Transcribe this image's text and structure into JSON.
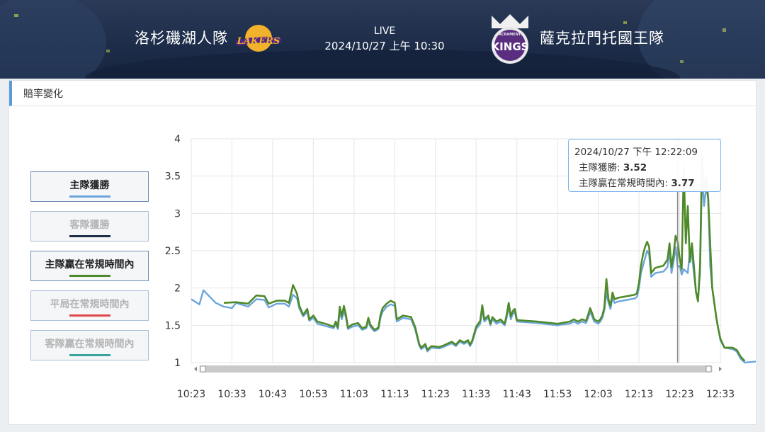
{
  "header": {
    "home_team": "洛杉磯湖人隊",
    "away_team": "薩克拉門托國王隊",
    "status": "LIVE",
    "datetime": "2024/10/27 上午 10:30",
    "home_logo_text": "LAKERS",
    "away_logo_text": "KINGS",
    "away_logo_small": "SACRAMENTO"
  },
  "panel": {
    "title": "賠率變化"
  },
  "legend": [
    {
      "label": "主隊獲勝",
      "color": "#6ba5dc",
      "active": true
    },
    {
      "label": "客隊獲勝",
      "color": "#1f2f4a",
      "active": false
    },
    {
      "label": "主隊贏在常規時間內",
      "color": "#4f8a2a",
      "active": true
    },
    {
      "label": "平局在常規時間內",
      "color": "#e0474c",
      "active": false
    },
    {
      "label": "客隊贏在常規時間內",
      "color": "#39a49a",
      "active": false
    }
  ],
  "tooltip": {
    "time": "2024/10/27 下午 12:22:09",
    "row1_label": "主隊獲勝: ",
    "row1_value": "3.52",
    "row2_label": "主隊贏在常規時間內: ",
    "row2_value": "3.77"
  },
  "chart_data": {
    "type": "line",
    "x_ticks": [
      "10:23",
      "10:33",
      "10:43",
      "10:53",
      "11:03",
      "11:13",
      "11:23",
      "11:33",
      "11:43",
      "11:53",
      "12:03",
      "12:13",
      "12:23",
      "12:33"
    ],
    "y_ticks": [
      "1",
      "1.5",
      "2",
      "2.5",
      "3",
      "3.5",
      "4"
    ],
    "ylim": [
      1,
      4
    ],
    "xlim_minutes": [
      0,
      130
    ],
    "crosshair_x": 119.5,
    "grid": true,
    "series": [
      {
        "name": "主隊獲勝",
        "color": "#6ba5dc",
        "points": [
          [
            0,
            1.85
          ],
          [
            2,
            1.78
          ],
          [
            3,
            1.97
          ],
          [
            6,
            1.8
          ],
          [
            8,
            1.75
          ],
          [
            10,
            1.73
          ],
          [
            11,
            1.8
          ],
          [
            14,
            1.75
          ],
          [
            16,
            1.85
          ],
          [
            18,
            1.84
          ],
          [
            19,
            1.74
          ],
          [
            21,
            1.79
          ],
          [
            23,
            1.79
          ],
          [
            24,
            1.75
          ],
          [
            25,
            1.91
          ],
          [
            26,
            1.86
          ],
          [
            26.5,
            1.73
          ],
          [
            27.5,
            1.62
          ],
          [
            28.5,
            1.68
          ],
          [
            29,
            1.56
          ],
          [
            30,
            1.6
          ],
          [
            31,
            1.52
          ],
          [
            33,
            1.49
          ],
          [
            35,
            1.46
          ],
          [
            35.5,
            1.52
          ],
          [
            36,
            1.45
          ],
          [
            36.5,
            1.68
          ],
          [
            37,
            1.58
          ],
          [
            37.5,
            1.7
          ],
          [
            38,
            1.6
          ],
          [
            38.5,
            1.45
          ],
          [
            39.5,
            1.48
          ],
          [
            41,
            1.5
          ],
          [
            42,
            1.44
          ],
          [
            43,
            1.46
          ],
          [
            43.5,
            1.56
          ],
          [
            44,
            1.48
          ],
          [
            45,
            1.42
          ],
          [
            46,
            1.45
          ],
          [
            46.5,
            1.6
          ],
          [
            47,
            1.68
          ],
          [
            48,
            1.75
          ],
          [
            49,
            1.78
          ],
          [
            50,
            1.76
          ],
          [
            50.5,
            1.55
          ],
          [
            52,
            1.6
          ],
          [
            54,
            1.58
          ],
          [
            55,
            1.45
          ],
          [
            56,
            1.23
          ],
          [
            56.5,
            1.18
          ],
          [
            57.5,
            1.22
          ],
          [
            58,
            1.15
          ],
          [
            59,
            1.2
          ],
          [
            61,
            1.19
          ],
          [
            62,
            1.21
          ],
          [
            64,
            1.26
          ],
          [
            65,
            1.22
          ],
          [
            66,
            1.28
          ],
          [
            67,
            1.25
          ],
          [
            68,
            1.28
          ],
          [
            68.5,
            1.22
          ],
          [
            69,
            1.27
          ],
          [
            70,
            1.45
          ],
          [
            71,
            1.52
          ],
          [
            71.5,
            1.72
          ],
          [
            72,
            1.55
          ],
          [
            73,
            1.6
          ],
          [
            73.5,
            1.5
          ],
          [
            74,
            1.58
          ],
          [
            75,
            1.52
          ],
          [
            76,
            1.55
          ],
          [
            77,
            1.5
          ],
          [
            77.5,
            1.6
          ],
          [
            78,
            1.75
          ],
          [
            78.5,
            1.58
          ],
          [
            79,
            1.65
          ],
          [
            79.5,
            1.68
          ],
          [
            80,
            1.55
          ],
          [
            85,
            1.53
          ],
          [
            90,
            1.5
          ],
          [
            91,
            1.51
          ],
          [
            93,
            1.52
          ],
          [
            94,
            1.55
          ],
          [
            95,
            1.52
          ],
          [
            96,
            1.55
          ],
          [
            97,
            1.53
          ],
          [
            97.5,
            1.6
          ],
          [
            98,
            1.68
          ],
          [
            98.5,
            1.62
          ],
          [
            99,
            1.55
          ],
          [
            100,
            1.52
          ],
          [
            100.5,
            1.55
          ],
          [
            101,
            1.6
          ],
          [
            101.5,
            1.7
          ],
          [
            102,
            1.94
          ],
          [
            102.5,
            1.8
          ],
          [
            103,
            1.72
          ],
          [
            103.5,
            1.88
          ],
          [
            104,
            1.8
          ],
          [
            105,
            1.82
          ],
          [
            108,
            1.85
          ],
          [
            109,
            1.86
          ],
          [
            109.5,
            1.88
          ],
          [
            110,
            2.0
          ],
          [
            110.5,
            2.2
          ],
          [
            111,
            2.3
          ],
          [
            111.5,
            2.4
          ],
          [
            112,
            2.5
          ],
          [
            112.5,
            2.45
          ],
          [
            113,
            2.15
          ],
          [
            114,
            2.2
          ],
          [
            116,
            2.22
          ],
          [
            117,
            2.28
          ],
          [
            117.5,
            2.5
          ],
          [
            118,
            2.2
          ],
          [
            118.5,
            2.35
          ],
          [
            119,
            2.55
          ],
          [
            119.5,
            2.28
          ],
          [
            120,
            2.3
          ],
          [
            120.5,
            2.18
          ],
          [
            121,
            2.25
          ],
          [
            122,
            2.2
          ],
          [
            122.5,
            2.5
          ],
          [
            123,
            2.45
          ],
          [
            123.5,
            2.2
          ],
          [
            124,
            1.95
          ],
          [
            124.5,
            1.85
          ],
          [
            125,
            2.2
          ],
          [
            125.5,
            3.52
          ],
          [
            126,
            3.1
          ],
          [
            126.5,
            3.35
          ],
          [
            127,
            3.2
          ],
          [
            127.5,
            2.3
          ],
          [
            128,
            2.0
          ],
          [
            128.5,
            1.8
          ],
          [
            129,
            1.6
          ],
          [
            129.5,
            1.45
          ],
          [
            130,
            1.3
          ],
          [
            131,
            1.2
          ],
          [
            133,
            1.18
          ],
          [
            134,
            1.15
          ],
          [
            135,
            1.05
          ],
          [
            136,
            1.0
          ],
          [
            140,
            1.02
          ]
        ]
      },
      {
        "name": "主隊贏在常規時間內",
        "color": "#4f8a2a",
        "points": [
          [
            8,
            1.8
          ],
          [
            11,
            1.81
          ],
          [
            14,
            1.79
          ],
          [
            16,
            1.9
          ],
          [
            18,
            1.89
          ],
          [
            19,
            1.79
          ],
          [
            21,
            1.83
          ],
          [
            23,
            1.83
          ],
          [
            24,
            1.8
          ],
          [
            25,
            2.04
          ],
          [
            26,
            1.92
          ],
          [
            26.5,
            1.77
          ],
          [
            27.5,
            1.64
          ],
          [
            28.5,
            1.72
          ],
          [
            29,
            1.58
          ],
          [
            30,
            1.63
          ],
          [
            31,
            1.55
          ],
          [
            33,
            1.52
          ],
          [
            35,
            1.48
          ],
          [
            35.5,
            1.55
          ],
          [
            36,
            1.47
          ],
          [
            36.5,
            1.75
          ],
          [
            37,
            1.62
          ],
          [
            37.5,
            1.76
          ],
          [
            38,
            1.64
          ],
          [
            38.5,
            1.47
          ],
          [
            39.5,
            1.51
          ],
          [
            41,
            1.53
          ],
          [
            42,
            1.46
          ],
          [
            43,
            1.48
          ],
          [
            43.5,
            1.6
          ],
          [
            44,
            1.51
          ],
          [
            45,
            1.44
          ],
          [
            46,
            1.47
          ],
          [
            46.5,
            1.64
          ],
          [
            47,
            1.73
          ],
          [
            48,
            1.79
          ],
          [
            49,
            1.83
          ],
          [
            50,
            1.8
          ],
          [
            50.5,
            1.58
          ],
          [
            52,
            1.63
          ],
          [
            54,
            1.61
          ],
          [
            55,
            1.48
          ],
          [
            56,
            1.25
          ],
          [
            56.5,
            1.2
          ],
          [
            57.5,
            1.25
          ],
          [
            58,
            1.17
          ],
          [
            59,
            1.22
          ],
          [
            61,
            1.21
          ],
          [
            62,
            1.23
          ],
          [
            64,
            1.28
          ],
          [
            65,
            1.24
          ],
          [
            66,
            1.3
          ],
          [
            67,
            1.27
          ],
          [
            68,
            1.3
          ],
          [
            68.5,
            1.24
          ],
          [
            69,
            1.29
          ],
          [
            70,
            1.48
          ],
          [
            71,
            1.56
          ],
          [
            71.5,
            1.77
          ],
          [
            72,
            1.58
          ],
          [
            73,
            1.63
          ],
          [
            73.5,
            1.52
          ],
          [
            74,
            1.61
          ],
          [
            75,
            1.55
          ],
          [
            76,
            1.58
          ],
          [
            77,
            1.52
          ],
          [
            77.5,
            1.64
          ],
          [
            78,
            1.8
          ],
          [
            78.5,
            1.62
          ],
          [
            79,
            1.69
          ],
          [
            79.5,
            1.72
          ],
          [
            80,
            1.57
          ],
          [
            85,
            1.55
          ],
          [
            90,
            1.52
          ],
          [
            91,
            1.53
          ],
          [
            93,
            1.55
          ],
          [
            94,
            1.58
          ],
          [
            95,
            1.55
          ],
          [
            96,
            1.58
          ],
          [
            97,
            1.56
          ],
          [
            97.5,
            1.64
          ],
          [
            98,
            1.73
          ],
          [
            98.5,
            1.66
          ],
          [
            99,
            1.58
          ],
          [
            100,
            1.55
          ],
          [
            100.5,
            1.58
          ],
          [
            101,
            1.63
          ],
          [
            101.5,
            1.74
          ],
          [
            102,
            2.12
          ],
          [
            102.5,
            1.85
          ],
          [
            103,
            1.76
          ],
          [
            103.5,
            1.94
          ],
          [
            104,
            1.85
          ],
          [
            105,
            1.87
          ],
          [
            108,
            1.9
          ],
          [
            109,
            1.91
          ],
          [
            109.5,
            1.93
          ],
          [
            110,
            2.07
          ],
          [
            110.5,
            2.3
          ],
          [
            111,
            2.45
          ],
          [
            111.5,
            2.55
          ],
          [
            112,
            2.62
          ],
          [
            112.5,
            2.55
          ],
          [
            113,
            2.2
          ],
          [
            114,
            2.27
          ],
          [
            116,
            2.3
          ],
          [
            117,
            2.38
          ],
          [
            117.5,
            2.6
          ],
          [
            118,
            2.28
          ],
          [
            118.5,
            2.45
          ],
          [
            119,
            2.7
          ],
          [
            119.5,
            2.62
          ],
          [
            120,
            2.4
          ],
          [
            120.5,
            2.25
          ],
          [
            121,
            3.62
          ],
          [
            121.5,
            2.6
          ],
          [
            122,
            3.1
          ],
          [
            122.5,
            2.35
          ],
          [
            123,
            2.6
          ],
          [
            123.5,
            2.3
          ],
          [
            124,
            1.95
          ],
          [
            124.5,
            1.82
          ],
          [
            125,
            2.3
          ],
          [
            125.5,
            3.77
          ],
          [
            126,
            3.3
          ],
          [
            126.5,
            3.5
          ],
          [
            127,
            3.2
          ],
          [
            127.5,
            2.6
          ],
          [
            128,
            2.0
          ],
          [
            128.5,
            1.8
          ],
          [
            129,
            1.6
          ],
          [
            129.5,
            1.45
          ],
          [
            130,
            1.32
          ],
          [
            131,
            1.2
          ],
          [
            133,
            1.2
          ],
          [
            134,
            1.17
          ],
          [
            135,
            1.08
          ],
          [
            136,
            1.02
          ]
        ]
      }
    ]
  }
}
